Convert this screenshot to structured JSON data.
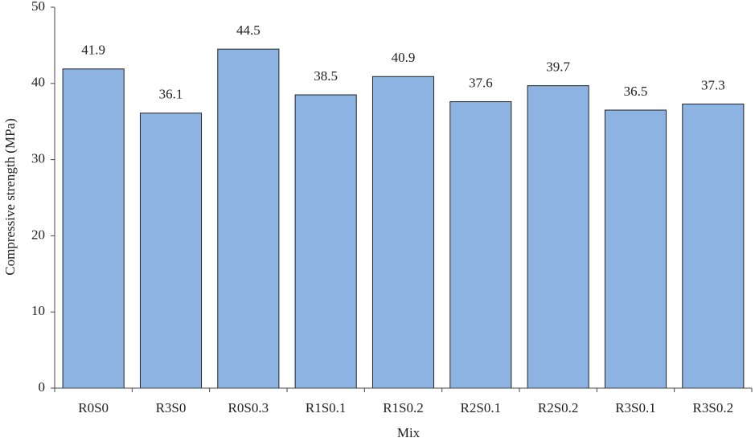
{
  "chart_data": {
    "type": "bar",
    "x_label": "Mix",
    "y_label": "Compressive strength (MPa)",
    "categories": [
      "R0S0",
      "R3S0",
      "R0S0.3",
      "R1S0.1",
      "R1S0.2",
      "R2S0.1",
      "R2S0.2",
      "R3S0.1",
      "R3S0.2"
    ],
    "values": [
      41.9,
      36.1,
      44.5,
      38.5,
      40.9,
      37.6,
      39.7,
      36.5,
      37.3
    ],
    "color": "#8db3e2",
    "ylim": [
      0,
      50
    ],
    "yticks": [
      0,
      10,
      20,
      30,
      40,
      50
    ],
    "grid": false
  }
}
